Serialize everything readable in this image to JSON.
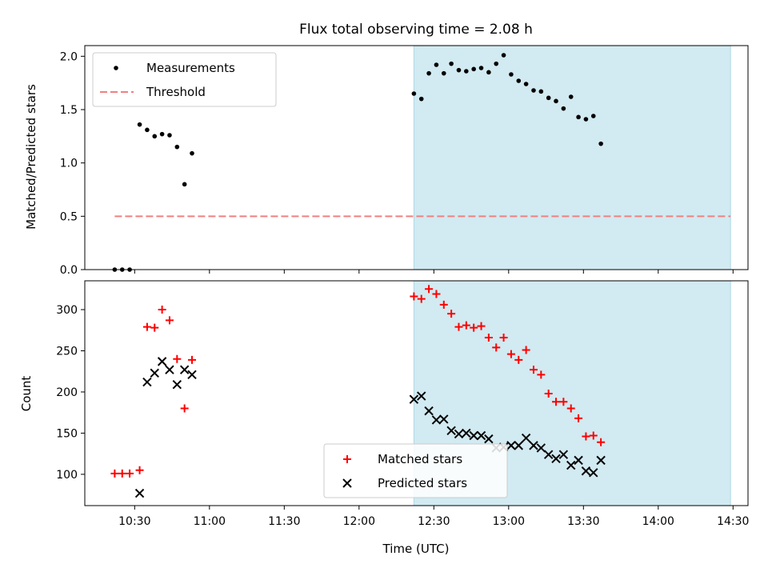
{
  "chart_data": [
    {
      "type": "scatter",
      "title": "Flux total observing time = 2.08 h",
      "ylabel": "Matched/Predicted stars",
      "xlim": [
        "10:10",
        "14:36"
      ],
      "ylim": [
        0,
        2.1
      ],
      "yticks": [
        "0.0",
        "0.5",
        "1.0",
        "1.5",
        "2.0"
      ],
      "shaded_interval": [
        "12:22",
        "14:29"
      ],
      "shade_color": "#add8e6",
      "legend_position": "upper-left",
      "series": [
        {
          "name": "Measurements",
          "marker": "dot",
          "color": "#000000",
          "points": [
            [
              "10:22",
              0.0
            ],
            [
              "10:25",
              0.0
            ],
            [
              "10:28",
              0.0
            ],
            [
              "10:32",
              1.36
            ],
            [
              "10:35",
              1.31
            ],
            [
              "10:38",
              1.25
            ],
            [
              "10:41",
              1.27
            ],
            [
              "10:44",
              1.26
            ],
            [
              "10:47",
              1.15
            ],
            [
              "10:50",
              0.8
            ],
            [
              "10:53",
              1.09
            ],
            [
              "12:22",
              1.65
            ],
            [
              "12:25",
              1.6
            ],
            [
              "12:28",
              1.84
            ],
            [
              "12:31",
              1.92
            ],
            [
              "12:34",
              1.84
            ],
            [
              "12:37",
              1.93
            ],
            [
              "12:40",
              1.87
            ],
            [
              "12:43",
              1.86
            ],
            [
              "12:46",
              1.88
            ],
            [
              "12:49",
              1.89
            ],
            [
              "12:52",
              1.85
            ],
            [
              "12:55",
              1.93
            ],
            [
              "12:58",
              2.01
            ],
            [
              "13:01",
              1.83
            ],
            [
              "13:04",
              1.77
            ],
            [
              "13:07",
              1.74
            ],
            [
              "13:10",
              1.68
            ],
            [
              "13:13",
              1.67
            ],
            [
              "13:16",
              1.61
            ],
            [
              "13:19",
              1.58
            ],
            [
              "13:22",
              1.51
            ],
            [
              "13:25",
              1.62
            ],
            [
              "13:28",
              1.43
            ],
            [
              "13:31",
              1.41
            ],
            [
              "13:34",
              1.44
            ],
            [
              "13:37",
              1.18
            ]
          ]
        },
        {
          "name": "Threshold",
          "marker": "dashed-line",
          "color": "#f08080",
          "points": [
            [
              "10:22",
              0.5
            ],
            [
              "14:29",
              0.5
            ]
          ]
        }
      ]
    },
    {
      "type": "scatter",
      "xlabel": "Time (UTC)",
      "ylabel": "Count",
      "xlim": [
        "10:10",
        "14:36"
      ],
      "ylim": [
        62,
        335
      ],
      "yticks": [
        "100",
        "150",
        "200",
        "250",
        "300"
      ],
      "xticks": [
        "10:30",
        "11:00",
        "11:30",
        "12:00",
        "12:30",
        "13:00",
        "13:30",
        "14:00",
        "14:30"
      ],
      "shaded_interval": [
        "12:22",
        "14:29"
      ],
      "shade_color": "#add8e6",
      "legend_position": "lower-center",
      "series": [
        {
          "name": "Matched stars",
          "marker": "plus",
          "color": "#ff0000",
          "points": [
            [
              "10:22",
              101
            ],
            [
              "10:25",
              101
            ],
            [
              "10:28",
              101
            ],
            [
              "10:32",
              105
            ],
            [
              "10:35",
              279
            ],
            [
              "10:38",
              278
            ],
            [
              "10:41",
              300
            ],
            [
              "10:44",
              287
            ],
            [
              "10:47",
              240
            ],
            [
              "10:50",
              180
            ],
            [
              "10:53",
              239
            ],
            [
              "12:22",
              316
            ],
            [
              "12:25",
              313
            ],
            [
              "12:28",
              325
            ],
            [
              "12:31",
              319
            ],
            [
              "12:34",
              306
            ],
            [
              "12:37",
              295
            ],
            [
              "12:40",
              279
            ],
            [
              "12:43",
              281
            ],
            [
              "12:46",
              278
            ],
            [
              "12:49",
              280
            ],
            [
              "12:52",
              266
            ],
            [
              "12:55",
              254
            ],
            [
              "12:58",
              266
            ],
            [
              "13:01",
              246
            ],
            [
              "13:04",
              239
            ],
            [
              "13:07",
              251
            ],
            [
              "13:10",
              227
            ],
            [
              "13:13",
              221
            ],
            [
              "13:16",
              198
            ],
            [
              "13:19",
              188
            ],
            [
              "13:22",
              188
            ],
            [
              "13:25",
              180
            ],
            [
              "13:28",
              168
            ],
            [
              "13:31",
              146
            ],
            [
              "13:34",
              147
            ],
            [
              "13:37",
              139
            ]
          ]
        },
        {
          "name": "Predicted stars",
          "marker": "x",
          "color": "#000000",
          "points": [
            [
              "10:32",
              77
            ],
            [
              "10:35",
              212
            ],
            [
              "10:38",
              223
            ],
            [
              "10:41",
              237
            ],
            [
              "10:44",
              227
            ],
            [
              "10:47",
              209
            ],
            [
              "10:50",
              227
            ],
            [
              "10:53",
              221
            ],
            [
              "12:22",
              191
            ],
            [
              "12:25",
              195
            ],
            [
              "12:28",
              177
            ],
            [
              "12:31",
              166
            ],
            [
              "12:34",
              167
            ],
            [
              "12:37",
              153
            ],
            [
              "12:40",
              149
            ],
            [
              "12:43",
              150
            ],
            [
              "12:46",
              147
            ],
            [
              "12:49",
              147
            ],
            [
              "12:52",
              143
            ],
            [
              "12:55",
              132
            ],
            [
              "12:58",
              133
            ],
            [
              "13:01",
              135
            ],
            [
              "13:04",
              135
            ],
            [
              "13:07",
              144
            ],
            [
              "13:10",
              135
            ],
            [
              "13:13",
              132
            ],
            [
              "13:16",
              124
            ],
            [
              "13:19",
              119
            ],
            [
              "13:22",
              124
            ],
            [
              "13:25",
              111
            ],
            [
              "13:28",
              117
            ],
            [
              "13:31",
              104
            ],
            [
              "13:34",
              102
            ],
            [
              "13:37",
              117
            ]
          ]
        }
      ]
    }
  ]
}
